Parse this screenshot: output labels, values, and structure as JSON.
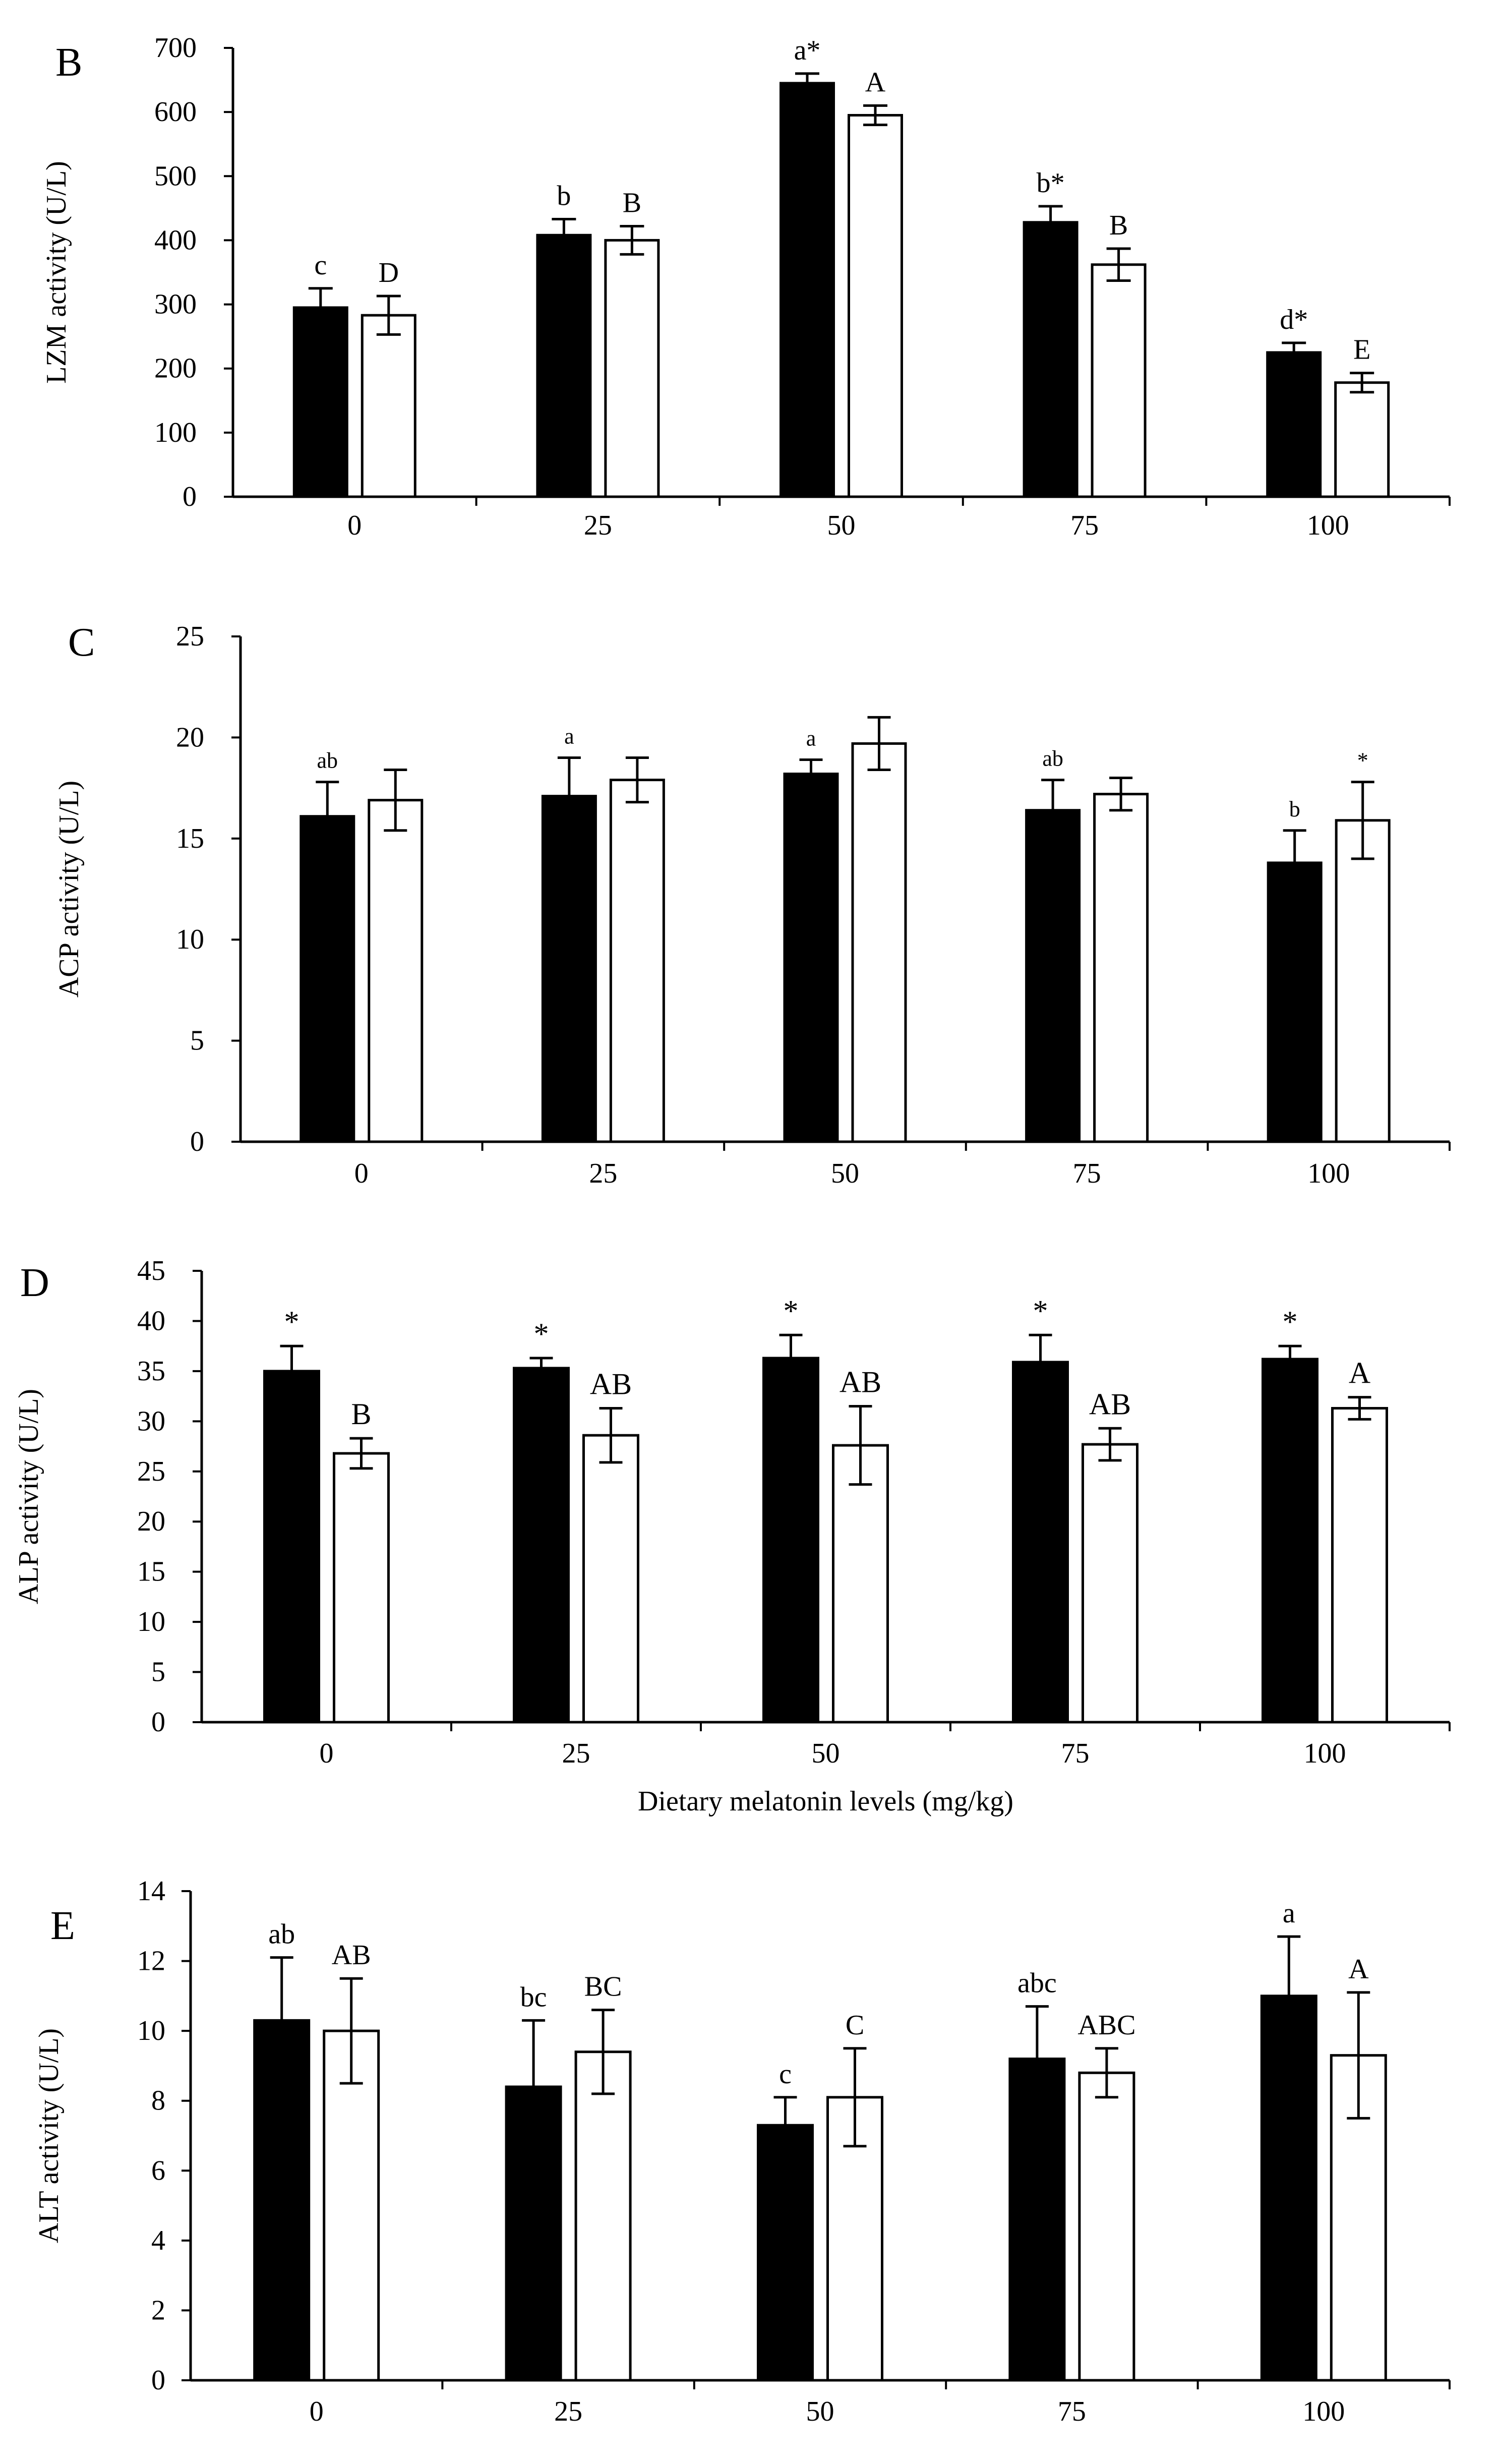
{
  "colors": {
    "black_bar": "#000000",
    "white_bar": "#ffffff",
    "axis": "#000000"
  },
  "chart_data": [
    {
      "type": "bar",
      "panel": "B",
      "ylabel": "LZM activity (U/L)",
      "xlabel": "",
      "categories": [
        "0",
        "25",
        "50",
        "75",
        "100"
      ],
      "ylim": [
        0,
        700
      ],
      "yticks": [
        "0",
        "100",
        "200",
        "300",
        "400",
        "500",
        "600",
        "700"
      ],
      "series": [
        {
          "name": "black",
          "values": [
            295,
            408,
            645,
            428,
            225
          ],
          "errors": [
            30,
            25,
            15,
            25,
            15
          ],
          "labels": [
            "c",
            "b",
            "a*",
            "b*",
            "d*"
          ]
        },
        {
          "name": "white",
          "values": [
            283,
            400,
            595,
            362,
            178
          ],
          "errors": [
            30,
            22,
            15,
            25,
            15
          ],
          "labels": [
            "D",
            "B",
            "A",
            "B",
            "E"
          ]
        }
      ]
    },
    {
      "type": "bar",
      "panel": "C",
      "ylabel": "ACP activity (U/L)",
      "xlabel": "",
      "categories": [
        "0",
        "25",
        "50",
        "75",
        "100"
      ],
      "ylim": [
        0,
        25
      ],
      "yticks": [
        "0",
        "5",
        "10",
        "15",
        "20",
        "25"
      ],
      "series": [
        {
          "name": "black",
          "values": [
            16.1,
            17.1,
            18.2,
            16.4,
            13.8
          ],
          "errors": [
            1.7,
            1.9,
            0.7,
            1.5,
            1.6
          ],
          "labels": [
            "ab",
            "a",
            "a",
            "ab",
            "b"
          ]
        },
        {
          "name": "white",
          "values": [
            16.9,
            17.9,
            19.7,
            17.2,
            15.9
          ],
          "errors": [
            1.5,
            1.1,
            1.3,
            0.8,
            1.9
          ],
          "labels": [
            "",
            "",
            "",
            "",
            "*"
          ]
        }
      ]
    },
    {
      "type": "bar",
      "panel": "D",
      "ylabel": "ALP activity (U/L)",
      "xlabel": "Dietary melatonin levels (mg/kg)",
      "categories": [
        "0",
        "25",
        "50",
        "75",
        "100"
      ],
      "ylim": [
        0,
        45
      ],
      "yticks": [
        "0",
        "5",
        "10",
        "15",
        "20",
        "25",
        "30",
        "35",
        "40",
        "45"
      ],
      "series": [
        {
          "name": "black",
          "values": [
            35.0,
            35.3,
            36.3,
            35.9,
            36.2
          ],
          "errors": [
            2.5,
            1.0,
            2.3,
            2.7,
            1.3
          ],
          "labels": [
            "*",
            "*",
            "*",
            "*",
            "*"
          ]
        },
        {
          "name": "white",
          "values": [
            26.8,
            28.6,
            27.6,
            27.7,
            31.3
          ],
          "errors": [
            1.5,
            2.7,
            3.9,
            1.6,
            1.1
          ],
          "labels": [
            "B",
            "AB",
            "AB",
            "AB",
            "A"
          ]
        }
      ]
    },
    {
      "type": "bar",
      "panel": "E",
      "ylabel": "ALT activity (U/L)",
      "xlabel": "",
      "categories": [
        "0",
        "25",
        "50",
        "75",
        "100"
      ],
      "ylim": [
        0,
        14
      ],
      "yticks": [
        "0",
        "2",
        "4",
        "6",
        "8",
        "10",
        "12",
        "14"
      ],
      "series": [
        {
          "name": "black",
          "values": [
            10.3,
            8.4,
            7.3,
            9.2,
            11.0
          ],
          "errors": [
            1.8,
            1.9,
            0.8,
            1.5,
            1.7
          ],
          "labels": [
            "ab",
            "bc",
            "c",
            "abc",
            "a"
          ]
        },
        {
          "name": "white",
          "values": [
            10.0,
            9.4,
            8.1,
            8.8,
            9.3
          ],
          "errors": [
            1.5,
            1.2,
            1.4,
            0.7,
            1.8
          ],
          "labels": [
            "AB",
            "BC",
            "C",
            "ABC",
            "A"
          ]
        }
      ]
    }
  ]
}
